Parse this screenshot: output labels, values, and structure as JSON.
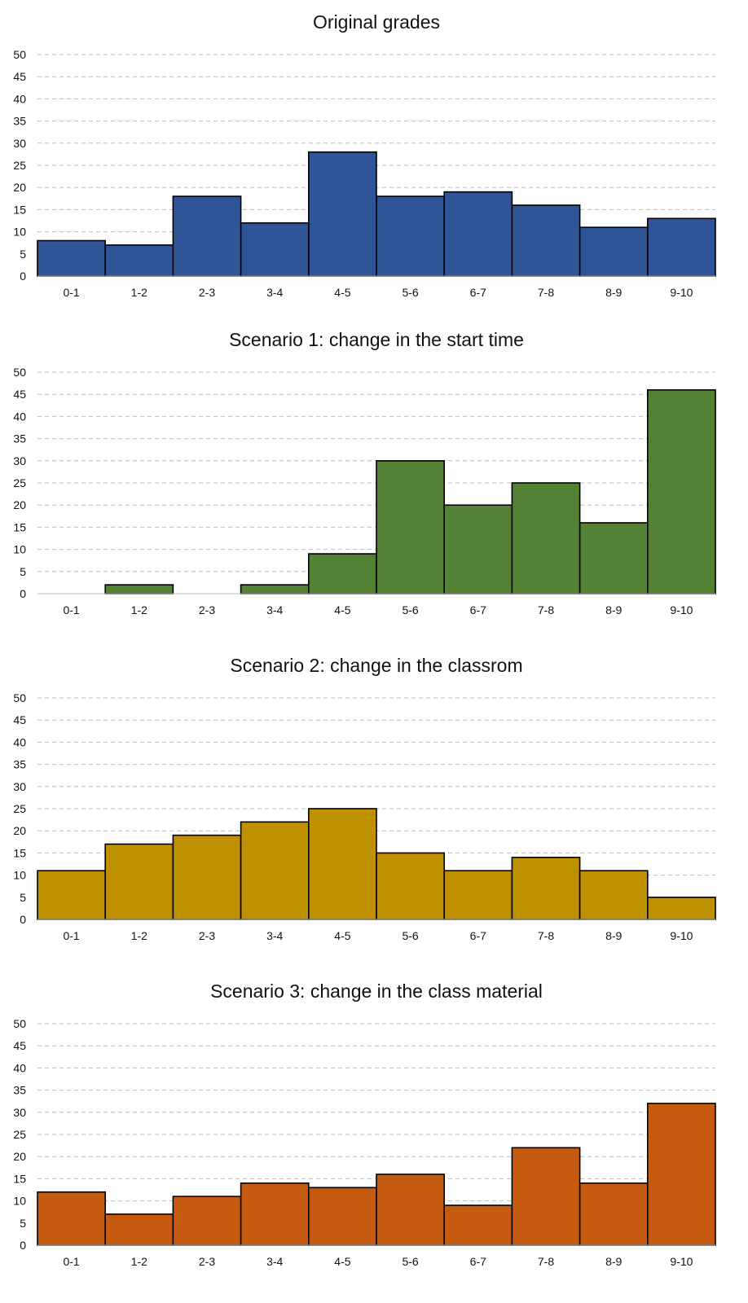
{
  "chart_data": [
    {
      "type": "bar",
      "title": "Original grades",
      "categories": [
        "0-1",
        "1-2",
        "2-3",
        "3-4",
        "4-5",
        "5-6",
        "6-7",
        "7-8",
        "8-9",
        "9-10"
      ],
      "values": [
        8,
        7,
        18,
        12,
        28,
        18,
        19,
        16,
        11,
        13
      ],
      "ylim": [
        0,
        50
      ],
      "yticks": [
        0,
        5,
        10,
        15,
        20,
        25,
        30,
        35,
        40,
        45,
        50
      ],
      "color": "#2F5597",
      "grid": true,
      "xlabel": "",
      "ylabel": ""
    },
    {
      "type": "bar",
      "title": "Scenario 1: change in the start time",
      "categories": [
        "0-1",
        "1-2",
        "2-3",
        "3-4",
        "4-5",
        "5-6",
        "6-7",
        "7-8",
        "8-9",
        "9-10"
      ],
      "values": [
        0,
        2,
        0,
        2,
        9,
        30,
        20,
        25,
        16,
        46
      ],
      "ylim": [
        0,
        50
      ],
      "yticks": [
        0,
        5,
        10,
        15,
        20,
        25,
        30,
        35,
        40,
        45,
        50
      ],
      "color": "#548235",
      "grid": true,
      "xlabel": "",
      "ylabel": ""
    },
    {
      "type": "bar",
      "title": "Scenario 2: change in the classrom",
      "categories": [
        "0-1",
        "1-2",
        "2-3",
        "3-4",
        "4-5",
        "5-6",
        "6-7",
        "7-8",
        "8-9",
        "9-10"
      ],
      "values": [
        11,
        17,
        19,
        22,
        25,
        15,
        11,
        14,
        11,
        5
      ],
      "ylim": [
        0,
        50
      ],
      "yticks": [
        0,
        5,
        10,
        15,
        20,
        25,
        30,
        35,
        40,
        45,
        50
      ],
      "color": "#BF9000",
      "grid": true,
      "xlabel": "",
      "ylabel": ""
    },
    {
      "type": "bar",
      "title": "Scenario 3: change in the class material",
      "categories": [
        "0-1",
        "1-2",
        "2-3",
        "3-4",
        "4-5",
        "5-6",
        "6-7",
        "7-8",
        "8-9",
        "9-10"
      ],
      "values": [
        12,
        7,
        11,
        14,
        13,
        16,
        9,
        22,
        14,
        32
      ],
      "ylim": [
        0,
        50
      ],
      "yticks": [
        0,
        5,
        10,
        15,
        20,
        25,
        30,
        35,
        40,
        45,
        50
      ],
      "color": "#C55A11",
      "grid": true,
      "xlabel": "",
      "ylabel": ""
    }
  ]
}
